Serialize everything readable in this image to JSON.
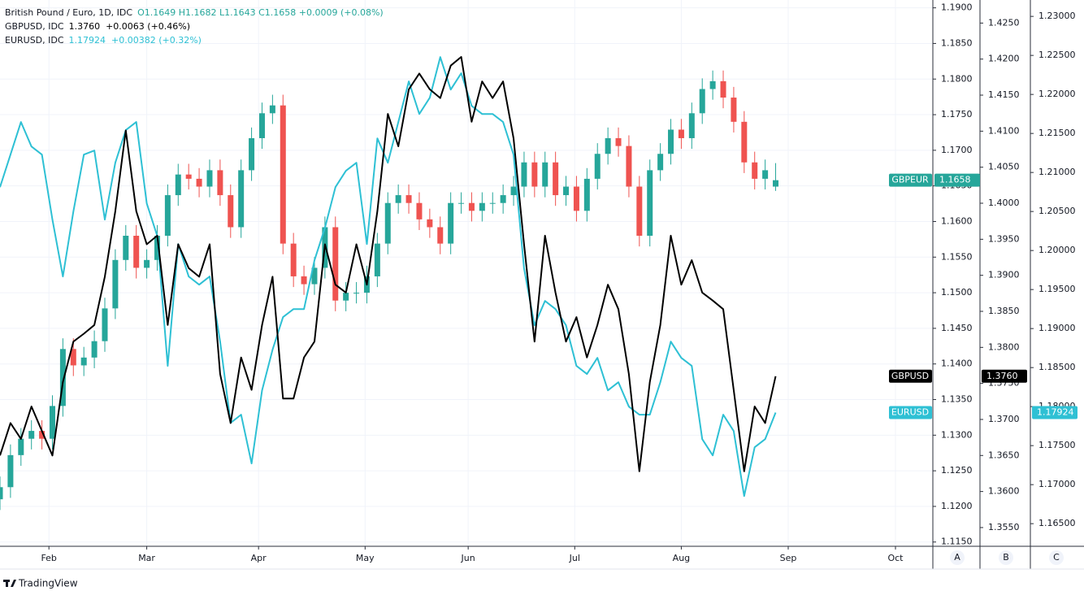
{
  "chart_data": {
    "type": "candlestick",
    "x": [
      0,
      3,
      6,
      9,
      12,
      15,
      18,
      21,
      24,
      27,
      30,
      33,
      36,
      39,
      42,
      45,
      48,
      51,
      54,
      57,
      60,
      63,
      66,
      69,
      72,
      75,
      78,
      81,
      84,
      87,
      90,
      93,
      96,
      99,
      102,
      105,
      108,
      111,
      114,
      117,
      120,
      123,
      126,
      129,
      132,
      135,
      138,
      141,
      144,
      147,
      150,
      153,
      156,
      159,
      162,
      165,
      168,
      171,
      174,
      177,
      180,
      183,
      186,
      189,
      192,
      195,
      198,
      201,
      204,
      207,
      210,
      213,
      216,
      219,
      222
    ],
    "xlim": [
      0,
      267
    ],
    "xticks": [
      {
        "value": 14,
        "label": "Feb"
      },
      {
        "value": 42,
        "label": "Mar"
      },
      {
        "value": 74,
        "label": "Apr"
      },
      {
        "value": 104.5,
        "label": "May"
      },
      {
        "value": 134,
        "label": "Jun"
      },
      {
        "value": 164.5,
        "label": "Jul"
      },
      {
        "value": 195,
        "label": "Aug"
      },
      {
        "value": 225.6,
        "label": "Sep"
      },
      {
        "value": 256.3,
        "label": "Oct"
      }
    ],
    "grid": true,
    "series": [
      {
        "name": "GBPEUR",
        "type": "candlestick",
        "axis": "y",
        "up_color": "#26a69a",
        "down_color": "#ef5350",
        "legend": "British Pound / Euro, 1D, IDC",
        "legend_values": "O1.1649 H1.1682 L1.1643 C1.1658 +0.0009 (+0.08%)",
        "open": [
          1.121,
          1.1227,
          1.1272,
          1.1295,
          1.1306,
          1.1295,
          1.1341,
          1.1421,
          1.1398,
          1.1409,
          1.1432,
          1.1478,
          1.1546,
          1.158,
          1.1535,
          1.1546,
          1.158,
          1.1637,
          1.1666,
          1.166,
          1.1649,
          1.1672,
          1.1637,
          1.1592,
          1.1672,
          1.1717,
          1.1752,
          1.1763,
          1.1569,
          1.1523,
          1.1512,
          1.1535,
          1.1592,
          1.1489,
          1.15,
          1.15,
          1.1523,
          1.1569,
          1.1626,
          1.1637,
          1.1626,
          1.1603,
          1.1592,
          1.1569,
          1.1626,
          1.1626,
          1.1615,
          1.1626,
          1.1626,
          1.1637,
          1.1649,
          1.1683,
          1.1649,
          1.1683,
          1.1637,
          1.1649,
          1.1615,
          1.166,
          1.1695,
          1.1717,
          1.1706,
          1.1649,
          1.158,
          1.1672,
          1.1695,
          1.1729,
          1.1717,
          1.1752,
          1.1786,
          1.1797,
          1.1774,
          1.174,
          1.1683,
          1.166,
          1.1649
        ],
        "high": [
          1.1242,
          1.1287,
          1.131,
          1.1321,
          1.1321,
          1.1356,
          1.1436,
          1.1436,
          1.1424,
          1.1447,
          1.1493,
          1.1561,
          1.1595,
          1.1595,
          1.1561,
          1.1595,
          1.1652,
          1.1681,
          1.1681,
          1.1675,
          1.1687,
          1.1687,
          1.1652,
          1.1687,
          1.1732,
          1.1767,
          1.1778,
          1.1778,
          1.1584,
          1.1538,
          1.155,
          1.1607,
          1.1607,
          1.1515,
          1.1515,
          1.1538,
          1.1584,
          1.1641,
          1.1652,
          1.1652,
          1.1641,
          1.1618,
          1.1607,
          1.1641,
          1.1641,
          1.1641,
          1.1641,
          1.1641,
          1.1652,
          1.1664,
          1.1698,
          1.1698,
          1.1698,
          1.1698,
          1.1664,
          1.1664,
          1.1675,
          1.171,
          1.1732,
          1.1732,
          1.1721,
          1.1664,
          1.1687,
          1.171,
          1.1744,
          1.1744,
          1.1767,
          1.1801,
          1.1812,
          1.1812,
          1.1789,
          1.1755,
          1.1698,
          1.1687,
          1.1682
        ],
        "low": [
          1.1195,
          1.1212,
          1.1257,
          1.128,
          1.128,
          1.128,
          1.1326,
          1.1383,
          1.1383,
          1.1394,
          1.1417,
          1.1463,
          1.1531,
          1.152,
          1.152,
          1.1531,
          1.1565,
          1.1622,
          1.1645,
          1.1634,
          1.1634,
          1.1622,
          1.1577,
          1.1577,
          1.1657,
          1.1702,
          1.1737,
          1.1554,
          1.1508,
          1.1497,
          1.1497,
          1.152,
          1.1474,
          1.1474,
          1.1485,
          1.1485,
          1.1508,
          1.1554,
          1.1611,
          1.1611,
          1.1588,
          1.1577,
          1.1554,
          1.1554,
          1.1611,
          1.16,
          1.16,
          1.1611,
          1.1611,
          1.1622,
          1.1634,
          1.1634,
          1.1634,
          1.1622,
          1.1622,
          1.16,
          1.16,
          1.1645,
          1.168,
          1.1691,
          1.1634,
          1.1565,
          1.1565,
          1.1657,
          1.168,
          1.1702,
          1.1702,
          1.1737,
          1.1771,
          1.1759,
          1.1725,
          1.1668,
          1.1645,
          1.1645,
          1.1643
        ],
        "close": [
          1.1227,
          1.1272,
          1.1295,
          1.1306,
          1.1295,
          1.1341,
          1.1421,
          1.1398,
          1.1409,
          1.1432,
          1.1478,
          1.1546,
          1.158,
          1.1535,
          1.1546,
          1.158,
          1.1637,
          1.1666,
          1.166,
          1.1649,
          1.1672,
          1.1637,
          1.1592,
          1.1672,
          1.1717,
          1.1752,
          1.1763,
          1.1569,
          1.1523,
          1.1512,
          1.1535,
          1.1592,
          1.1489,
          1.15,
          1.15,
          1.1523,
          1.1569,
          1.1626,
          1.1637,
          1.1626,
          1.1603,
          1.1592,
          1.1569,
          1.1626,
          1.1626,
          1.1615,
          1.1626,
          1.1626,
          1.1637,
          1.1649,
          1.1683,
          1.1649,
          1.1683,
          1.1637,
          1.1649,
          1.1615,
          1.166,
          1.1695,
          1.1717,
          1.1706,
          1.1649,
          1.158,
          1.1672,
          1.1695,
          1.1729,
          1.1717,
          1.1752,
          1.1786,
          1.1797,
          1.1774,
          1.174,
          1.1683,
          1.166,
          1.1672,
          1.1658
        ]
      },
      {
        "name": "GBPUSD",
        "type": "line",
        "axis": "y2",
        "color": "#000000",
        "legend": "GBPUSD, IDC",
        "legend_values": "1.3760  +0.0063 (+0.46%)",
        "price_tag": "1.3760",
        "values": [
          1.365,
          1.3695,
          1.3673,
          1.3718,
          1.3684,
          1.365,
          1.3752,
          1.3808,
          1.3819,
          1.3831,
          1.3898,
          1.3989,
          1.4101,
          1.3989,
          1.3943,
          1.3955,
          1.3831,
          1.3943,
          1.391,
          1.3898,
          1.3943,
          1.3763,
          1.3695,
          1.3786,
          1.3741,
          1.3831,
          1.3898,
          1.3729,
          1.3729,
          1.3786,
          1.3808,
          1.3943,
          1.3887,
          1.3876,
          1.3943,
          1.3887,
          1.3989,
          1.4124,
          1.4079,
          1.4158,
          1.418,
          1.4158,
          1.4146,
          1.4191,
          1.4203,
          1.4113,
          1.4169,
          1.4146,
          1.4169,
          1.409,
          1.3943,
          1.3808,
          1.3955,
          1.3876,
          1.3808,
          1.3842,
          1.3786,
          1.3831,
          1.3887,
          1.3853,
          1.3763,
          1.3628,
          1.3752,
          1.3831,
          1.3955,
          1.3887,
          1.3921,
          1.3876,
          1.3865,
          1.3853,
          1.3741,
          1.3628,
          1.3718,
          1.3695,
          1.376
        ]
      },
      {
        "name": "EURUSD",
        "type": "line",
        "axis": "y3",
        "color": "#2ec0d4",
        "legend": "EURUSD, IDC",
        "legend_values": "1.17924  +0.00382 (+0.32%)",
        "price_tag": "1.17924",
        "values": [
          1.20812,
          1.21229,
          1.21646,
          1.21333,
          1.21229,
          1.20396,
          1.19667,
          1.205,
          1.21229,
          1.21281,
          1.20396,
          1.21125,
          1.21542,
          1.21646,
          1.20604,
          1.20187,
          1.18521,
          1.20083,
          1.19667,
          1.19562,
          1.19667,
          1.18833,
          1.17791,
          1.17896,
          1.17271,
          1.18208,
          1.18729,
          1.19146,
          1.1925,
          1.1925,
          1.19875,
          1.20292,
          1.20812,
          1.21021,
          1.21125,
          1.20083,
          1.21437,
          1.21125,
          1.21646,
          1.22167,
          1.2175,
          1.21958,
          1.22479,
          1.22062,
          1.22271,
          1.21854,
          1.2175,
          1.2175,
          1.21646,
          1.21229,
          1.19771,
          1.19042,
          1.19354,
          1.1925,
          1.19042,
          1.18521,
          1.18417,
          1.18625,
          1.18208,
          1.18312,
          1.18,
          1.17896,
          1.17896,
          1.18312,
          1.18833,
          1.18625,
          1.18521,
          1.17583,
          1.17375,
          1.17896,
          1.17687,
          1.16854,
          1.17479,
          1.17583,
          1.17924
        ]
      }
    ],
    "ylim": [
      1.1144,
      1.1911
    ],
    "yticks": [
      {
        "value": 1.115,
        "label": "1.1150"
      },
      {
        "value": 1.12,
        "label": "1.1200"
      },
      {
        "value": 1.125,
        "label": "1.1250"
      },
      {
        "value": 1.13,
        "label": "1.1300"
      },
      {
        "value": 1.135,
        "label": "1.1350"
      },
      {
        "value": 1.14,
        "label": "1.1400"
      },
      {
        "value": 1.145,
        "label": "1.1450"
      },
      {
        "value": 1.15,
        "label": "1.1500"
      },
      {
        "value": 1.155,
        "label": "1.1550"
      },
      {
        "value": 1.16,
        "label": "1.1600"
      },
      {
        "value": 1.165,
        "label": "1.1650"
      },
      {
        "value": 1.17,
        "label": "1.1700"
      },
      {
        "value": 1.175,
        "label": "1.1750"
      },
      {
        "value": 1.18,
        "label": "1.1800"
      },
      {
        "value": 1.185,
        "label": "1.1850"
      },
      {
        "value": 1.19,
        "label": "1.1900"
      }
    ],
    "y2lim": [
      1.3524,
      1.4282
    ],
    "y2ticks": [
      {
        "value": 1.355,
        "label": "1.3550"
      },
      {
        "value": 1.36,
        "label": "1.3600"
      },
      {
        "value": 1.365,
        "label": "1.3650"
      },
      {
        "value": 1.37,
        "label": "1.3700"
      },
      {
        "value": 1.375,
        "label": "1.3750"
      },
      {
        "value": 1.38,
        "label": "1.3800"
      },
      {
        "value": 1.385,
        "label": "1.3850"
      },
      {
        "value": 1.39,
        "label": "1.3900"
      },
      {
        "value": 1.395,
        "label": "1.3950"
      },
      {
        "value": 1.4,
        "label": "1.4000"
      },
      {
        "value": 1.405,
        "label": "1.4050"
      },
      {
        "value": 1.41,
        "label": "1.4100"
      },
      {
        "value": 1.415,
        "label": "1.4150"
      },
      {
        "value": 1.42,
        "label": "1.4200"
      },
      {
        "value": 1.425,
        "label": "1.4250"
      }
    ],
    "y3lim": [
      1.1621,
      1.2321
    ],
    "y3ticks": [
      {
        "value": 1.165,
        "label": "1.16500"
      },
      {
        "value": 1.17,
        "label": "1.17000"
      },
      {
        "value": 1.175,
        "label": "1.17500"
      },
      {
        "value": 1.18,
        "label": "1.18000"
      },
      {
        "value": 1.185,
        "label": "1.18500"
      },
      {
        "value": 1.19,
        "label": "1.19000"
      },
      {
        "value": 1.195,
        "label": "1.19500"
      },
      {
        "value": 1.2,
        "label": "1.20000"
      },
      {
        "value": 1.205,
        "label": "1.20500"
      },
      {
        "value": 1.21,
        "label": "1.21000"
      },
      {
        "value": 1.215,
        "label": "1.21500"
      },
      {
        "value": 1.22,
        "label": "1.22000"
      },
      {
        "value": 1.225,
        "label": "1.22500"
      },
      {
        "value": 1.23,
        "label": "1.23000"
      }
    ],
    "axis_buttons": [
      "A",
      "B",
      "C"
    ],
    "brand": "TradingView"
  }
}
